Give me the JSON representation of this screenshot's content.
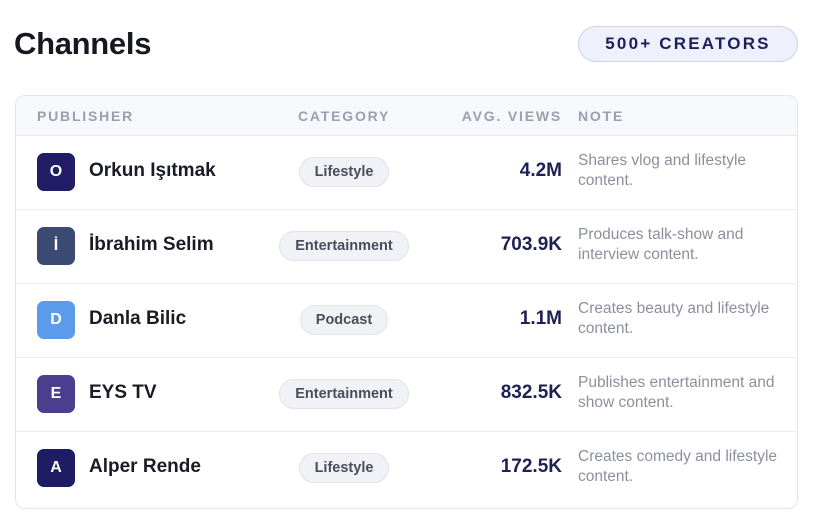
{
  "header": {
    "title": "Channels",
    "badge": "500+ CREATORS"
  },
  "table": {
    "columns": {
      "publisher": "PUBLISHER",
      "category": "CATEGORY",
      "views": "AVG. VIEWS",
      "note": "NOTE"
    },
    "rows": [
      {
        "initial": "O",
        "name": "Orkun Işıtmak",
        "category": "Lifestyle",
        "views": "4.2M",
        "note": "Shares vlog and lifestyle content.",
        "color": "#211d66"
      },
      {
        "initial": "İ",
        "name": "İbrahim Selim",
        "category": "Entertainment",
        "views": "703.9K",
        "note": "Produces talk-show and interview content.",
        "color": "#3b4a72"
      },
      {
        "initial": "D",
        "name": "Danla Bilic",
        "category": "Podcast",
        "views": "1.1M",
        "note": "Creates beauty and lifestyle content.",
        "color": "#5b9bea"
      },
      {
        "initial": "E",
        "name": "EYS TV",
        "category": "Entertainment",
        "views": "832.5K",
        "note": "Publishes entertainment and show content.",
        "color": "#4b3e8e"
      },
      {
        "initial": "A",
        "name": "Alper Rende",
        "category": "Lifestyle",
        "views": "172.5K",
        "note": "Creates comedy and lifestyle content.",
        "color": "#1e1c62"
      }
    ]
  }
}
